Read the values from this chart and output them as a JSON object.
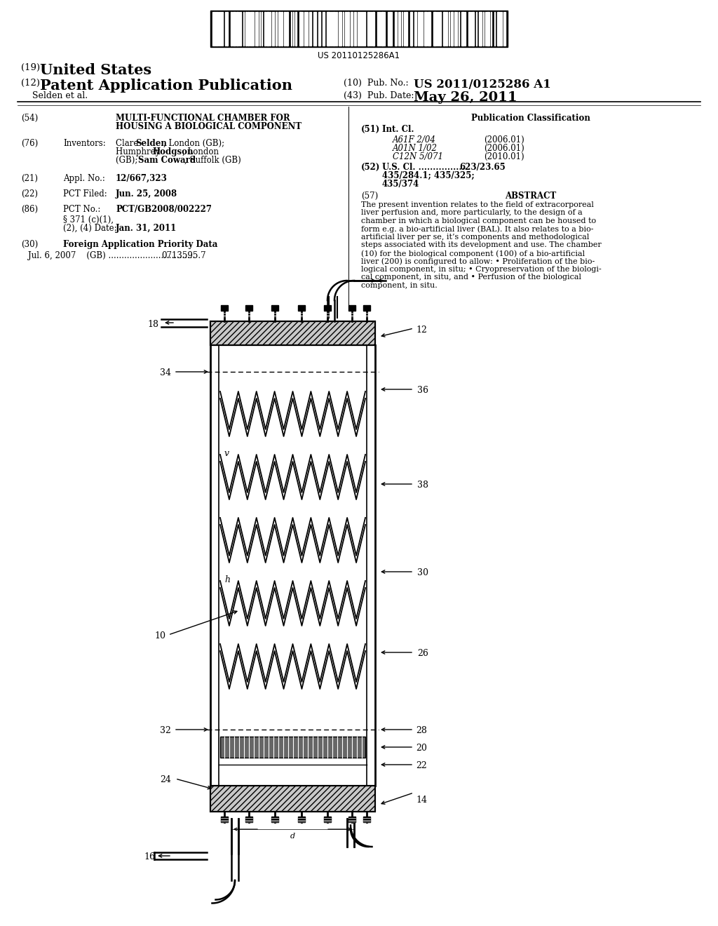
{
  "bg_color": "#ffffff",
  "barcode_text": "US 20110125286A1",
  "title_19": "(19) United States",
  "title_12_prefix": "(12) ",
  "title_12_main": "Patent Application Publication",
  "pub_no_label": "(10)  Pub. No.:",
  "pub_no_value": "US 2011/0125286 A1",
  "author": "    Selden et al.",
  "pub_date_label": "(43)  Pub. Date:",
  "pub_date_value": "May 26, 2011",
  "field54_label": "(54)",
  "field54_title1": "MULTI-FUNCTIONAL CHAMBER FOR",
  "field54_title2": "HOUSING A BIOLOGICAL COMPONENT",
  "field76_label": "(76)",
  "field76_col1": "Inventors:",
  "field76_line1_reg": "Clare ",
  "field76_line1_bold": "Selden",
  "field76_line1_end": ", London (GB);",
  "field76_line2_bold": "Humphrey Hodgson",
  "field76_line2_end": ", London",
  "field76_line3_reg1": "(GB); ",
  "field76_line3_bold": "Sam Coward",
  "field76_line3_end": ", Suffolk (GB)",
  "field21_label": "(21)",
  "field21_col1": "Appl. No.:",
  "field21_value": "12/667,323",
  "field22_label": "(22)",
  "field22_col1": "PCT Filed:",
  "field22_value": "Jun. 25, 2008",
  "field86_label": "(86)",
  "field86_col1": "PCT No.:",
  "field86_value": "PCT/GB2008/002227",
  "field371_line1": "§ 371 (c)(1),",
  "field371_line2": "(2), (4) Date:",
  "field371_value": "Jan. 31, 2011",
  "field30_label": "(30)",
  "field30_title": "Foreign Application Priority Data",
  "field30_entry": "Jul. 6, 2007    (GB) .................................",
  "field30_number": "0713595.7",
  "pub_class_title": "Publication Classification",
  "field51_label": "(51)",
  "field51_title": "Int. Cl.",
  "field51_rows": [
    [
      "A61F 2/04",
      "(2006.01)"
    ],
    [
      "A01N 1/02",
      "(2006.01)"
    ],
    [
      "C12N 5/071",
      "(2010.01)"
    ]
  ],
  "field52_label": "(52)",
  "field52_title": "U.S. Cl.",
  "field52_value1": "623/23.65",
  "field52_value2": "435/284.1; 435/325;",
  "field52_value3": "435/374",
  "field57_label": "(57)",
  "field57_title": "ABSTRACT",
  "abstract_lines": [
    "The present invention relates to the field of extracorporeal",
    "liver perfusion and, more particularly, to the design of a",
    "chamber in which a biological component can be housed to",
    "form e.g. a bio-artificial liver (BAL). It also relates to a bio-",
    "artificial liver per se, it’s components and methodological",
    "steps associated with its development and use. The chamber",
    "(10) for the biological component (100) of a bio-artificial",
    "liver (200) is configured to allow: • Proliferation of the bio-",
    "logical component, in situ; • Cryopreservation of the biologi-",
    "cal component, in situ, and • Perfusion of the biological",
    "component, in situ."
  ]
}
